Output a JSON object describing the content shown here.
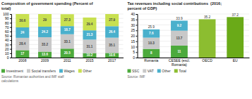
{
  "chart_data": [
    {
      "type": "bar",
      "title": "Composition of government spending (Percent of\ntotal)",
      "categories": [
        "2008",
        "2009",
        "2011",
        "2015",
        "2017"
      ],
      "series": [
        {
          "name": "Investment",
          "color": "#4caa3c",
          "values": [
            17,
            13.6,
            20.5,
            10.2,
            10.6
          ]
        },
        {
          "name": "Social transfers",
          "color": "#c8c8c8",
          "values": [
            28.4,
            33.2,
            33.1,
            31.1,
            35.1
          ]
        },
        {
          "name": "Wages",
          "color": "#4ab0cc",
          "values": [
            24,
            24.2,
            18.7,
            21.3,
            26.4
          ]
        },
        {
          "name": "Other",
          "color": "#c8e050",
          "values": [
            30.6,
            29,
            27.3,
            29.4,
            27.9
          ]
        }
      ],
      "stacked": true,
      "data_labels": true,
      "ylim": [
        0,
        100
      ],
      "yticks": [
        0,
        10,
        20,
        30,
        40,
        50,
        60,
        70,
        80,
        90,
        100
      ],
      "grid": true,
      "legend": "bottom",
      "annotations": [
        "Source: Romanian authorities and IMF staff\ncalculations"
      ]
    },
    {
      "type": "bar",
      "title": "Tax revenues including social contributions  (2016;\npercent of GDP)",
      "categories": [
        "Romania",
        "CESEE (excl.\nRomania)",
        "OECD",
        "EU"
      ],
      "series": [
        {
          "name": "SSC",
          "color": "#4caa3c",
          "values": [
            8,
            11,
            null,
            null
          ]
        },
        {
          "name": "VAT",
          "color": "#c8c8c8",
          "values": [
            10.3,
            13.7,
            null,
            null
          ]
        },
        {
          "name": "Other",
          "color": "#4ab0cc",
          "values": [
            7.6,
            9.2,
            null,
            null
          ]
        },
        {
          "name": "Total",
          "color": "#8cbd30",
          "colors": [
            null,
            null,
            "#8cbd30",
            "#6aaa18"
          ],
          "values": [
            null,
            null,
            35.2,
            37.2
          ]
        }
      ],
      "totals": [
        25.9,
        33.9,
        35.2,
        37.2
      ],
      "stacked": true,
      "data_labels": true,
      "ylim": [
        0,
        40
      ],
      "yticks": [
        0,
        5,
        10,
        15,
        20,
        25,
        30,
        35,
        40
      ],
      "grid": true,
      "legend": "bottom",
      "annotations": [
        "Source: IMF"
      ]
    }
  ]
}
